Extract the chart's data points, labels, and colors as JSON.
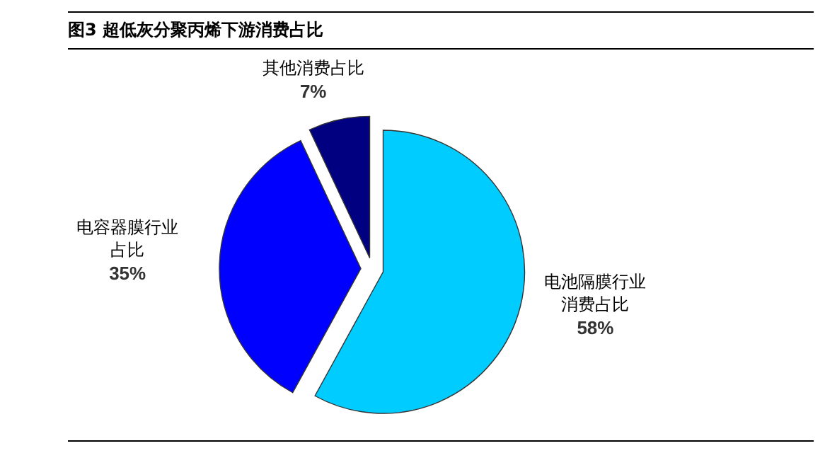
{
  "chart_data": {
    "type": "pie",
    "title": "图3  超低灰分聚丙烯下游消费占比",
    "categories": [
      "电池隔膜行业消费占比",
      "电容器膜行业占比",
      "其他消费占比"
    ],
    "values": [
      58,
      35,
      7
    ],
    "colors": [
      "#00ccff",
      "#0000ff",
      "#000080"
    ],
    "value_labels": [
      "58%",
      "35%",
      "7%"
    ]
  }
}
